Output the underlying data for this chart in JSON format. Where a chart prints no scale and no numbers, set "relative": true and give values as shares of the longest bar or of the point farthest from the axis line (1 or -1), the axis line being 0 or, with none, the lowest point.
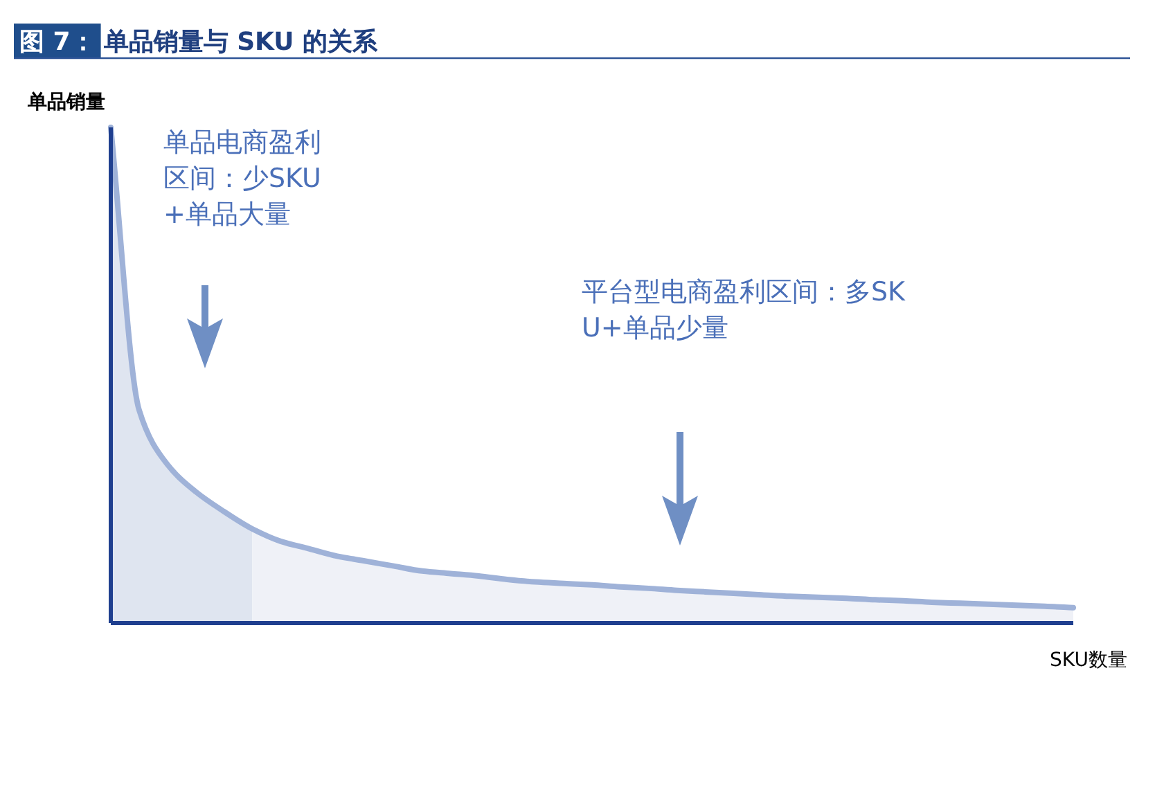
{
  "chart_data": {
    "type": "area",
    "title": "图 7：单品销量与 SKU 的关系",
    "xlabel": "SKU数量",
    "ylabel": "单品销量",
    "relative": true,
    "categories": [
      null,
      null,
      null,
      null,
      null,
      null,
      null,
      null,
      null,
      null,
      null,
      null,
      null,
      null,
      null,
      null,
      null,
      null,
      null,
      null,
      null,
      null,
      null,
      null,
      null,
      null,
      null,
      null,
      null,
      null,
      null,
      null,
      null,
      null,
      null
    ],
    "series": [
      {
        "type": "area",
        "color": "#dfe5f0",
        "values": [
          1.0,
          0.43,
          0.32,
          0.265,
          0.225,
          0.19,
          null,
          null,
          null,
          null,
          null,
          null,
          null,
          null,
          null,
          null,
          null,
          null,
          null,
          null,
          null,
          null,
          null,
          null,
          null,
          null,
          null,
          null,
          null,
          null,
          null,
          null,
          null,
          null,
          null
        ]
      },
      {
        "type": "area",
        "color": "#eff1f7",
        "values": [
          null,
          null,
          null,
          null,
          null,
          0.19,
          0.165,
          0.15,
          0.135,
          0.125,
          0.115,
          0.105,
          0.1,
          0.095,
          0.088,
          0.083,
          0.08,
          0.077,
          0.073,
          0.07,
          0.066,
          0.063,
          0.06,
          0.057,
          0.054,
          0.052,
          0.05,
          0.047,
          0.045,
          0.042,
          0.04,
          0.038,
          0.036,
          0.034,
          0.031
        ]
      },
      {
        "type": "line",
        "color": "#9fb2d8",
        "values": [
          1.0,
          0.43,
          0.32,
          0.265,
          0.225,
          0.19,
          0.165,
          0.15,
          0.135,
          0.125,
          0.115,
          0.105,
          0.1,
          0.095,
          0.088,
          0.083,
          0.08,
          0.077,
          0.073,
          0.07,
          0.066,
          0.063,
          0.06,
          0.057,
          0.054,
          0.052,
          0.05,
          0.047,
          0.045,
          0.042,
          0.04,
          0.038,
          0.036,
          0.034,
          0.031
        ]
      }
    ],
    "annotations": [
      "单品电商盈利区间：少SKU+单品大量",
      "平台型电商盈利区间：多SKU+单品少量"
    ]
  }
}
